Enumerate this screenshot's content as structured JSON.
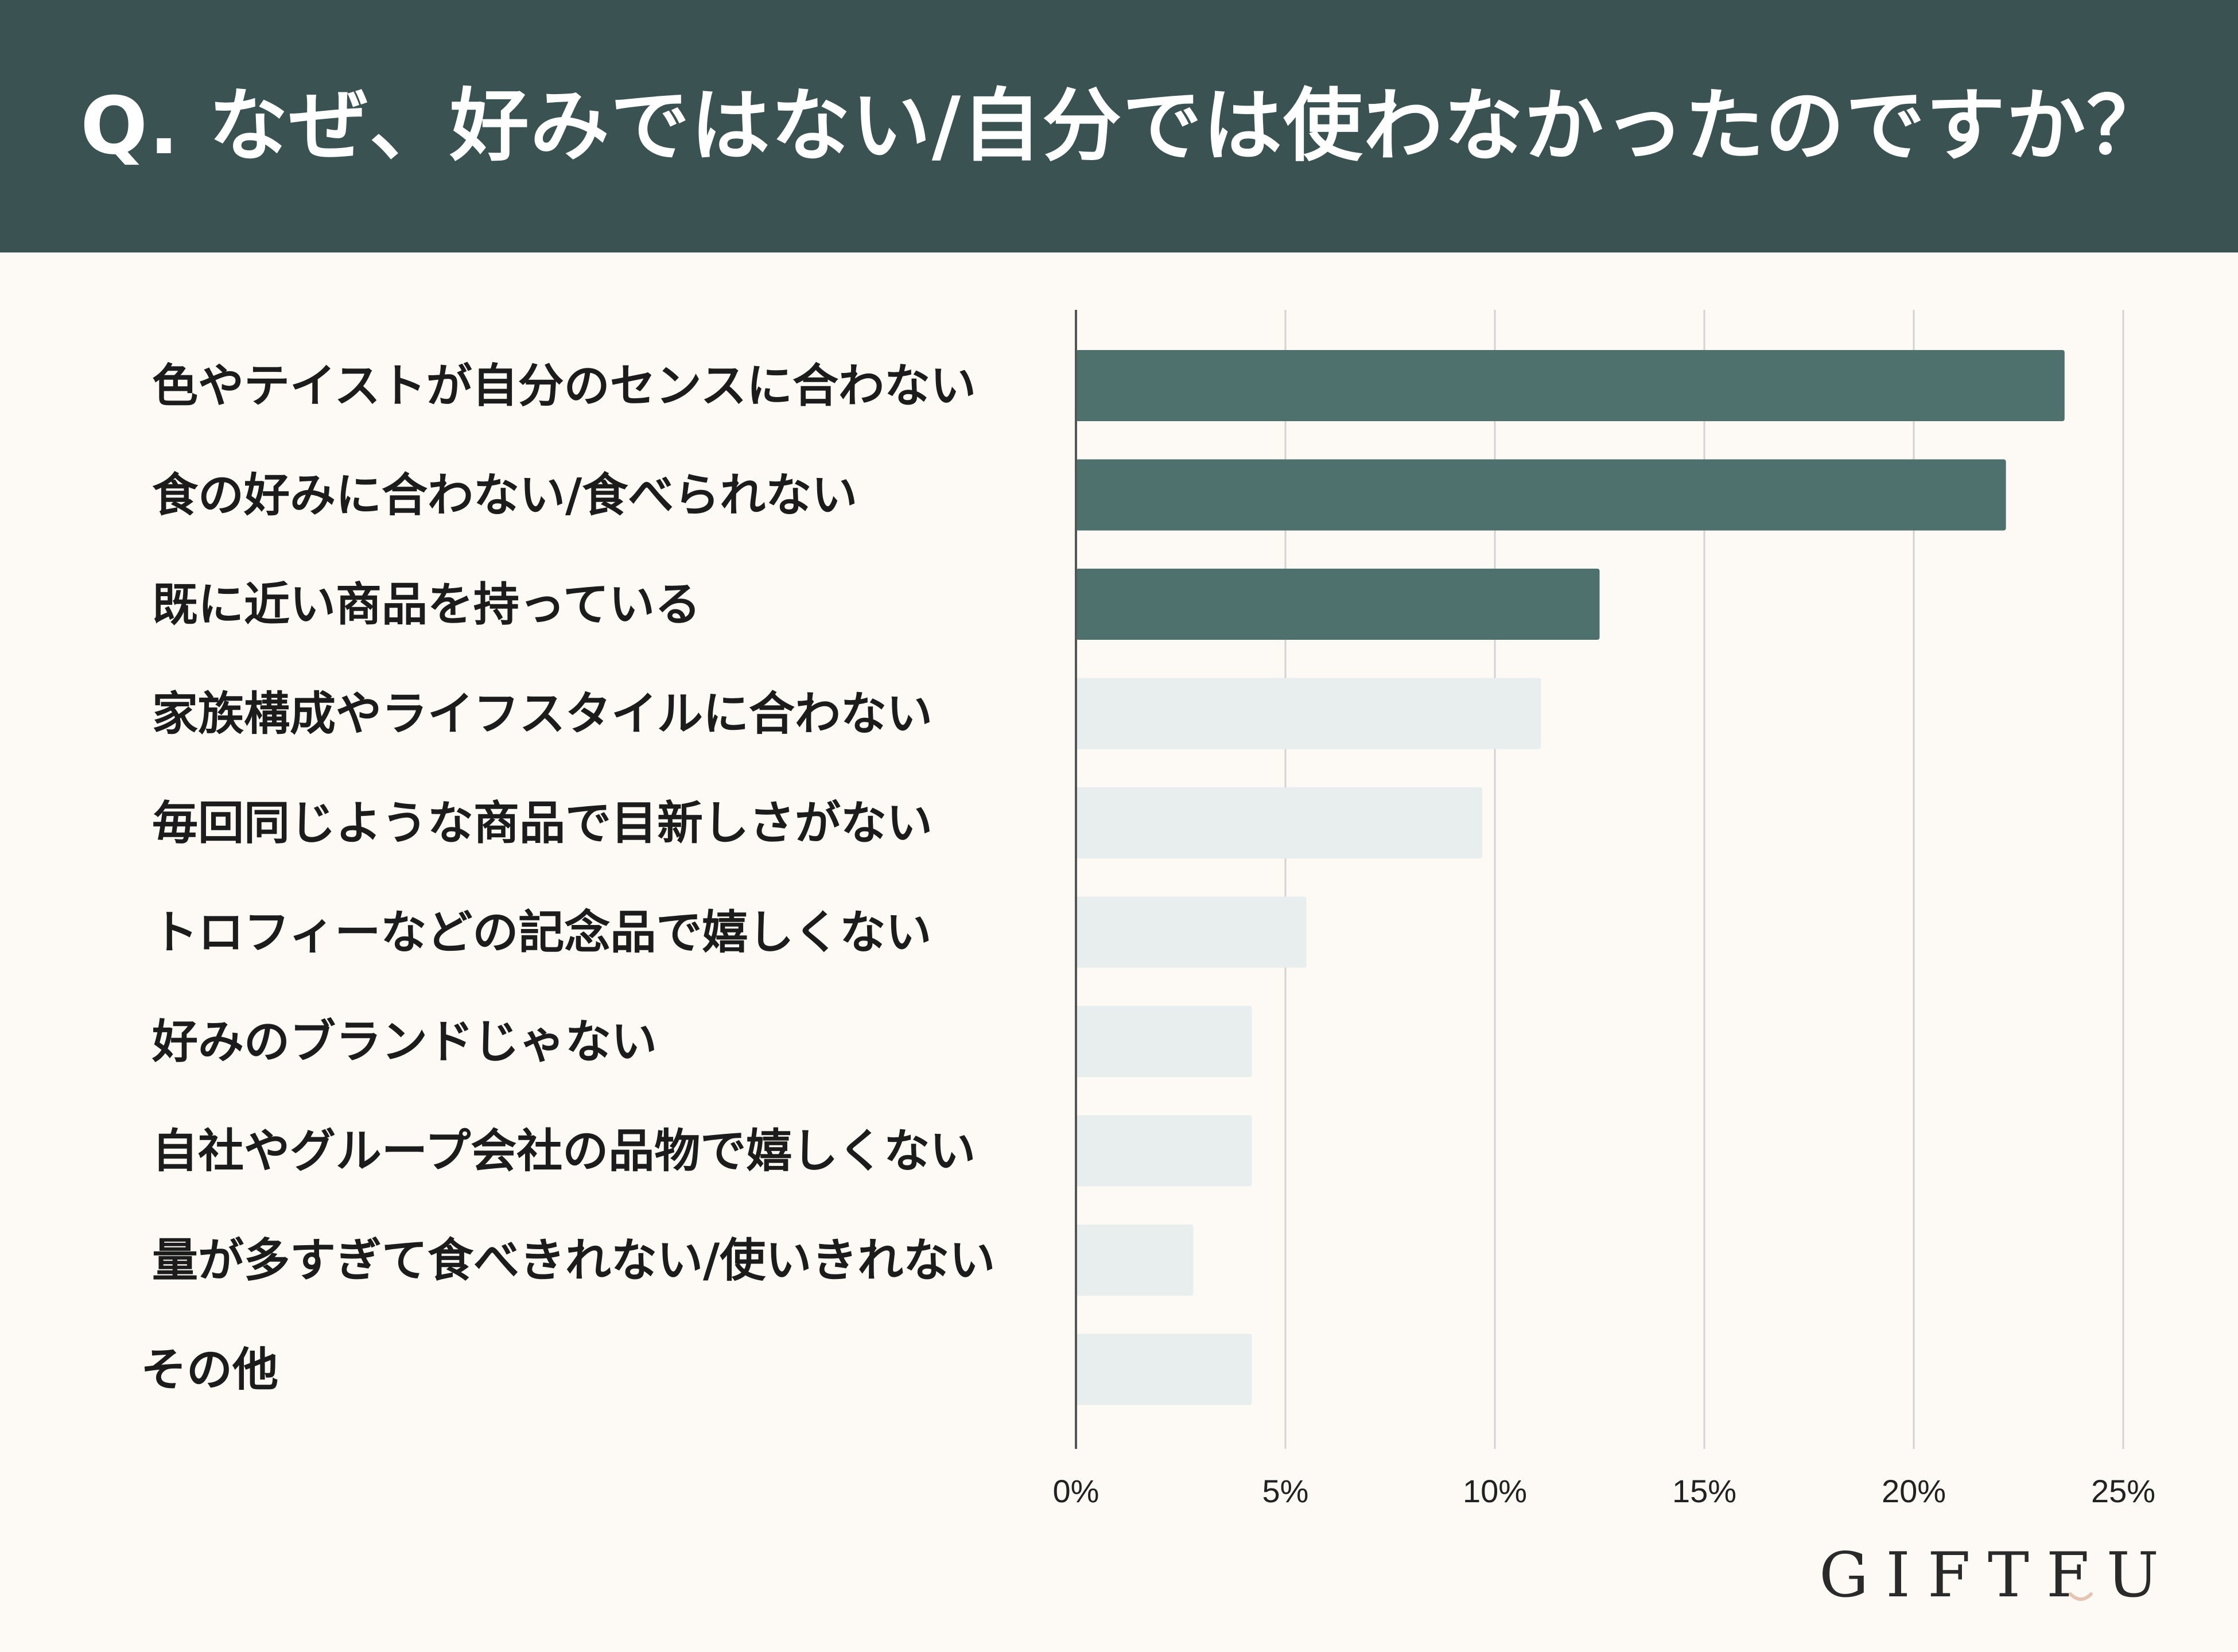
{
  "header": {
    "title": "Q. なぜ、好みではない/自分では使わなかったのですか？"
  },
  "colors": {
    "header_bg": "#3a5352",
    "bar_dark": "#4e716e",
    "bar_light": "#e7eeed",
    "grid": "#d3d3d3",
    "axis": "#555555",
    "background": "#fdfaf6",
    "logo_accent": "#e6c4b4"
  },
  "chart_data": {
    "type": "bar",
    "orientation": "horizontal",
    "categories": [
      "色やテイストが自分のセンスに合わない",
      "食の好みに合わない/食べられない",
      "既に近い商品を持っている",
      "家族構成やライフスタイルに合わない",
      "毎回同じような商品で目新しさがない",
      "トロフィーなどの記念品で嬉しくない",
      "好みのブランドじゃない",
      "自社やグループ会社の品物で嬉しくない",
      "量が多すぎて食べきれない/使いきれない",
      "その他"
    ],
    "values": [
      23.6,
      22.2,
      12.5,
      11.1,
      9.7,
      5.5,
      4.2,
      4.2,
      2.8,
      4.2
    ],
    "highlighted": [
      true,
      true,
      true,
      false,
      false,
      false,
      false,
      false,
      false,
      false
    ],
    "xlim": [
      0,
      25
    ],
    "xticks": [
      0,
      5,
      10,
      15,
      20,
      25
    ],
    "xtick_labels": [
      "0%",
      "5%",
      "10%",
      "15%",
      "20%",
      "25%"
    ],
    "grid": true,
    "legend": "none"
  },
  "logo": {
    "text": "GIFTFUL"
  }
}
